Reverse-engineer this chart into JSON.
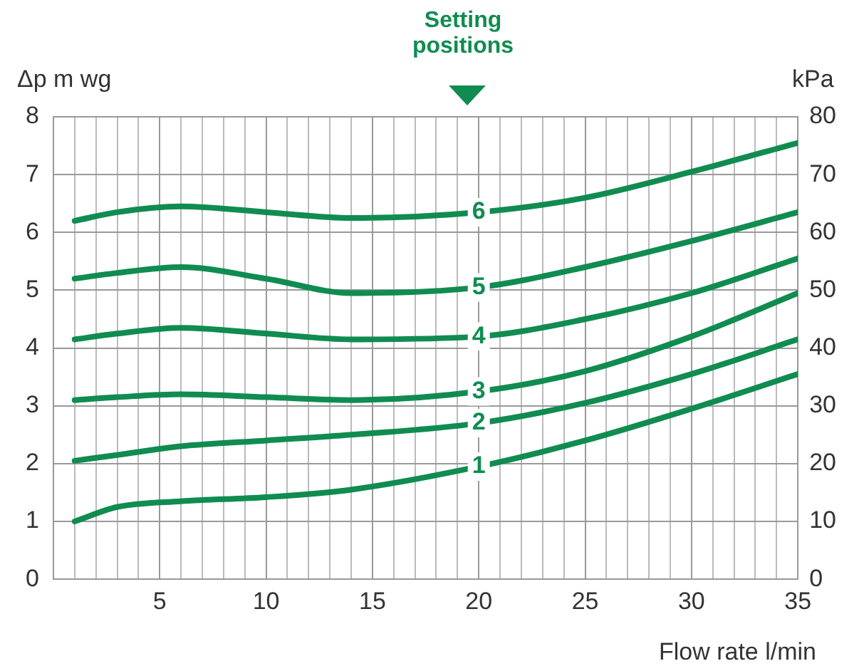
{
  "chart_data": {
    "type": "line",
    "title": "Setting positions",
    "xlabel": "Flow rate l/min",
    "ylabel": "Δp m wg",
    "y2label": "kPa",
    "x": [
      1,
      3,
      6,
      10,
      14,
      20,
      25,
      30,
      35
    ],
    "series": [
      {
        "name": "6",
        "color": "#108c50",
        "values": [
          6.2,
          6.35,
          6.45,
          6.35,
          6.25,
          6.35,
          6.6,
          7.05,
          7.55
        ]
      },
      {
        "name": "5",
        "color": "#108c50",
        "values": [
          5.2,
          5.3,
          5.4,
          5.2,
          4.95,
          5.05,
          5.4,
          5.85,
          6.35
        ]
      },
      {
        "name": "4",
        "color": "#108c50",
        "values": [
          4.15,
          4.25,
          4.35,
          4.25,
          4.15,
          4.2,
          4.5,
          4.95,
          5.55
        ]
      },
      {
        "name": "3",
        "color": "#108c50",
        "values": [
          3.1,
          3.15,
          3.2,
          3.15,
          3.1,
          3.25,
          3.6,
          4.2,
          4.95
        ]
      },
      {
        "name": "2",
        "color": "#108c50",
        "values": [
          2.05,
          2.15,
          2.3,
          2.4,
          2.5,
          2.7,
          3.05,
          3.55,
          4.15
        ]
      },
      {
        "name": "1",
        "color": "#108c50",
        "values": [
          1.0,
          1.25,
          1.35,
          1.42,
          1.55,
          1.95,
          2.4,
          2.95,
          3.55
        ]
      }
    ],
    "xlim": [
      0,
      35
    ],
    "xticks": [
      {
        "value": 0,
        "label": null
      },
      {
        "value": 1,
        "label": null
      },
      {
        "value": 2,
        "label": null
      },
      {
        "value": 3,
        "label": null
      },
      {
        "value": 4,
        "label": null
      },
      5,
      {
        "value": 6,
        "label": null
      },
      {
        "value": 7,
        "label": null
      },
      {
        "value": 8,
        "label": null
      },
      {
        "value": 9,
        "label": null
      },
      10,
      {
        "value": 11,
        "label": null
      },
      {
        "value": 12,
        "label": null
      },
      {
        "value": 13,
        "label": null
      },
      {
        "value": 14,
        "label": null
      },
      15,
      {
        "value": 16,
        "label": null
      },
      {
        "value": 17,
        "label": null
      },
      {
        "value": 18,
        "label": null
      },
      {
        "value": 19,
        "label": null
      },
      20,
      {
        "value": 21,
        "label": null
      },
      {
        "value": 22,
        "label": null
      },
      {
        "value": 23,
        "label": null
      },
      {
        "value": 24,
        "label": null
      },
      25,
      {
        "value": 26,
        "label": null
      },
      {
        "value": 27,
        "label": null
      },
      {
        "value": 28,
        "label": null
      },
      {
        "value": 29,
        "label": null
      },
      30,
      {
        "value": 31,
        "label": null
      },
      {
        "value": 32,
        "label": null
      },
      {
        "value": 33,
        "label": null
      },
      {
        "value": 34,
        "label": null
      },
      35
    ],
    "ylim": [
      0,
      8
    ],
    "yticks": [
      0,
      1,
      2,
      3,
      4,
      5,
      6,
      7,
      8
    ],
    "y2lim": [
      0,
      80
    ],
    "y2ticks": [
      0,
      10,
      20,
      30,
      40,
      50,
      60,
      70,
      80
    ],
    "grid": true,
    "legend": false,
    "marker": "none",
    "line_style": "solid"
  }
}
